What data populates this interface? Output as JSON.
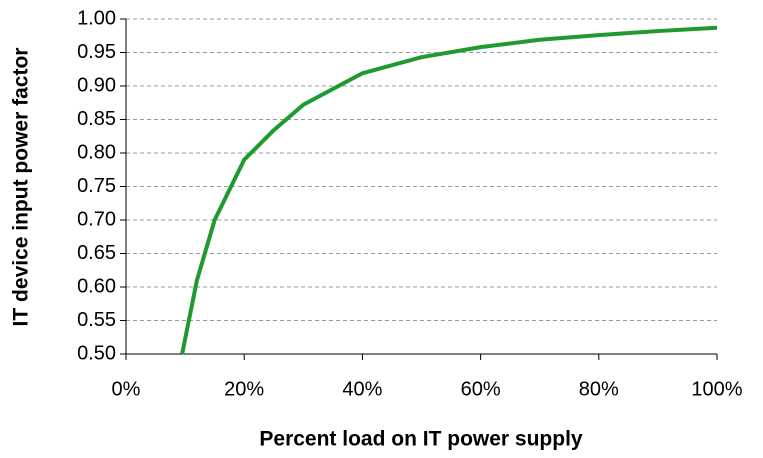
{
  "chart_data": {
    "type": "line",
    "x_label": "Percent load on IT power supply",
    "y_label": "IT device input power factor",
    "x": [
      9.5,
      12,
      15,
      20,
      25,
      30,
      40,
      50,
      60,
      70,
      80,
      90,
      100
    ],
    "series": [
      {
        "name": "Power factor",
        "color": "#1e9a2e",
        "values": [
          0.5,
          0.61,
          0.7,
          0.79,
          0.834,
          0.872,
          0.919,
          0.943,
          0.958,
          0.969,
          0.976,
          0.982,
          0.987
        ]
      }
    ],
    "xlim": [
      0,
      100
    ],
    "xticks": [
      {
        "value": 0,
        "label": "0%"
      },
      {
        "value": 20,
        "label": "20%"
      },
      {
        "value": 40,
        "label": "40%"
      },
      {
        "value": 60,
        "label": "60%"
      },
      {
        "value": 80,
        "label": "80%"
      },
      {
        "value": 100,
        "label": "100%"
      }
    ],
    "ylim": [
      0.5,
      1.0
    ],
    "yticks": [
      {
        "value": 0.5,
        "label": "0.50"
      },
      {
        "value": 0.55,
        "label": "0.55"
      },
      {
        "value": 0.6,
        "label": "0.60"
      },
      {
        "value": 0.65,
        "label": "0.65"
      },
      {
        "value": 0.7,
        "label": "0.70"
      },
      {
        "value": 0.75,
        "label": "0.75"
      },
      {
        "value": 0.8,
        "label": "0.80"
      },
      {
        "value": 0.85,
        "label": "0.85"
      },
      {
        "value": 0.9,
        "label": "0.90"
      },
      {
        "value": 0.95,
        "label": "0.95"
      },
      {
        "value": 1.0,
        "label": "1.00"
      }
    ],
    "grid": true
  }
}
